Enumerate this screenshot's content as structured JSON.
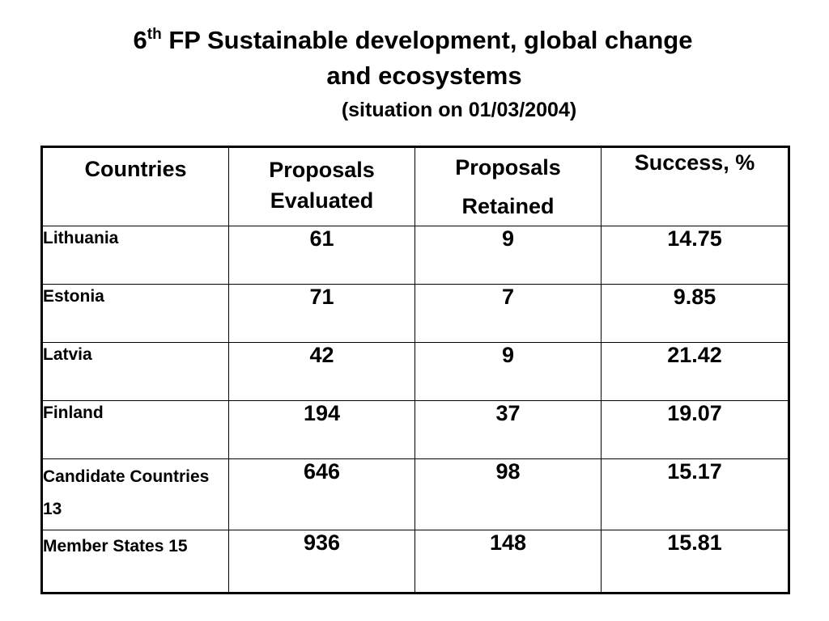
{
  "title": {
    "prefix": "6",
    "superscript": "th",
    "line1_rest": " FP Sustainable development, global change",
    "line2": "and ecosystems",
    "line3": "(situation on 01/03/2004)"
  },
  "table": {
    "headers": [
      "Countries",
      "Proposals Evaluated",
      "Proposals Retained",
      "Success, %"
    ],
    "rows": [
      {
        "country": "Lithuania",
        "evaluated": "61",
        "retained": "9",
        "success": "14.75"
      },
      {
        "country": "Estonia",
        "evaluated": "71",
        "retained": "7",
        "success": "9.85"
      },
      {
        "country": "Latvia",
        "evaluated": "42",
        "retained": "9",
        "success": "21.42"
      },
      {
        "country": "Finland",
        "evaluated": "194",
        "retained": "37",
        "success": "19.07"
      },
      {
        "country": "Candidate Countries 13",
        "evaluated": "646",
        "retained": "98",
        "success": "15.17"
      },
      {
        "country": "Member States 15",
        "evaluated": "936",
        "retained": "148",
        "success": "15.81"
      }
    ]
  }
}
